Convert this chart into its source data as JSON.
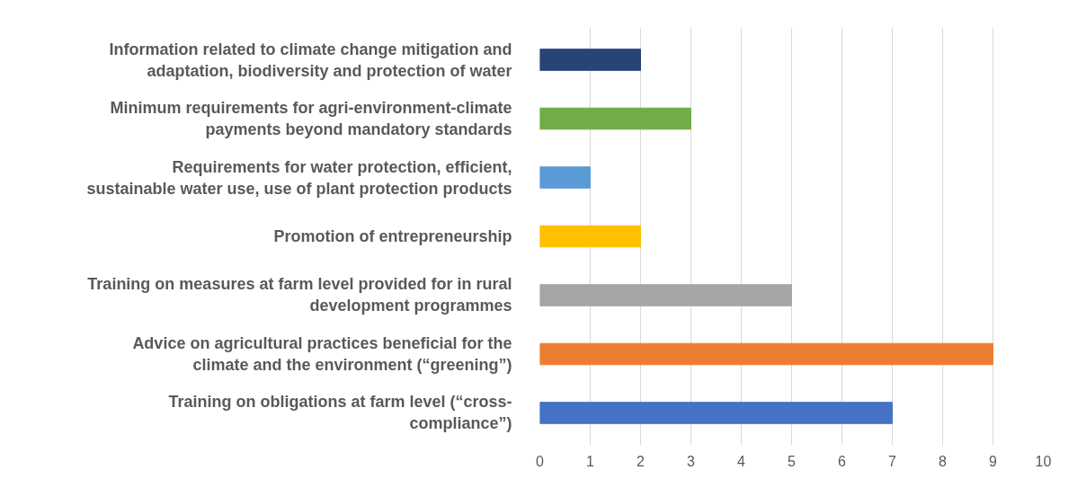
{
  "chart_data": {
    "type": "bar",
    "orientation": "horizontal",
    "categories": [
      "Information related to climate change mitigation and adaptation, biodiversity and protection of water",
      "Minimum requirements for agri-environment-climate payments beyond mandatory standards",
      "Requirements for water protection, efficient, sustainable water use, use of plant protection products",
      "Promotion of entrepreneurship",
      "Training on measures at farm level provided for in rural development programmes",
      "Advice on agricultural practices beneficial for the climate and the environment (“greening”)",
      "Training on obligations at farm level (“cross-compliance”)"
    ],
    "values": [
      2,
      3,
      1,
      2,
      5,
      9,
      7
    ],
    "colors": [
      "#264478",
      "#70ad47",
      "#5b9bd5",
      "#ffc000",
      "#a5a5a5",
      "#ed7d31",
      "#4472c4"
    ],
    "xlim": [
      0,
      10
    ],
    "xticks": [
      0,
      1,
      2,
      3,
      4,
      5,
      6,
      7,
      8,
      9,
      10
    ],
    "grid": "x"
  }
}
